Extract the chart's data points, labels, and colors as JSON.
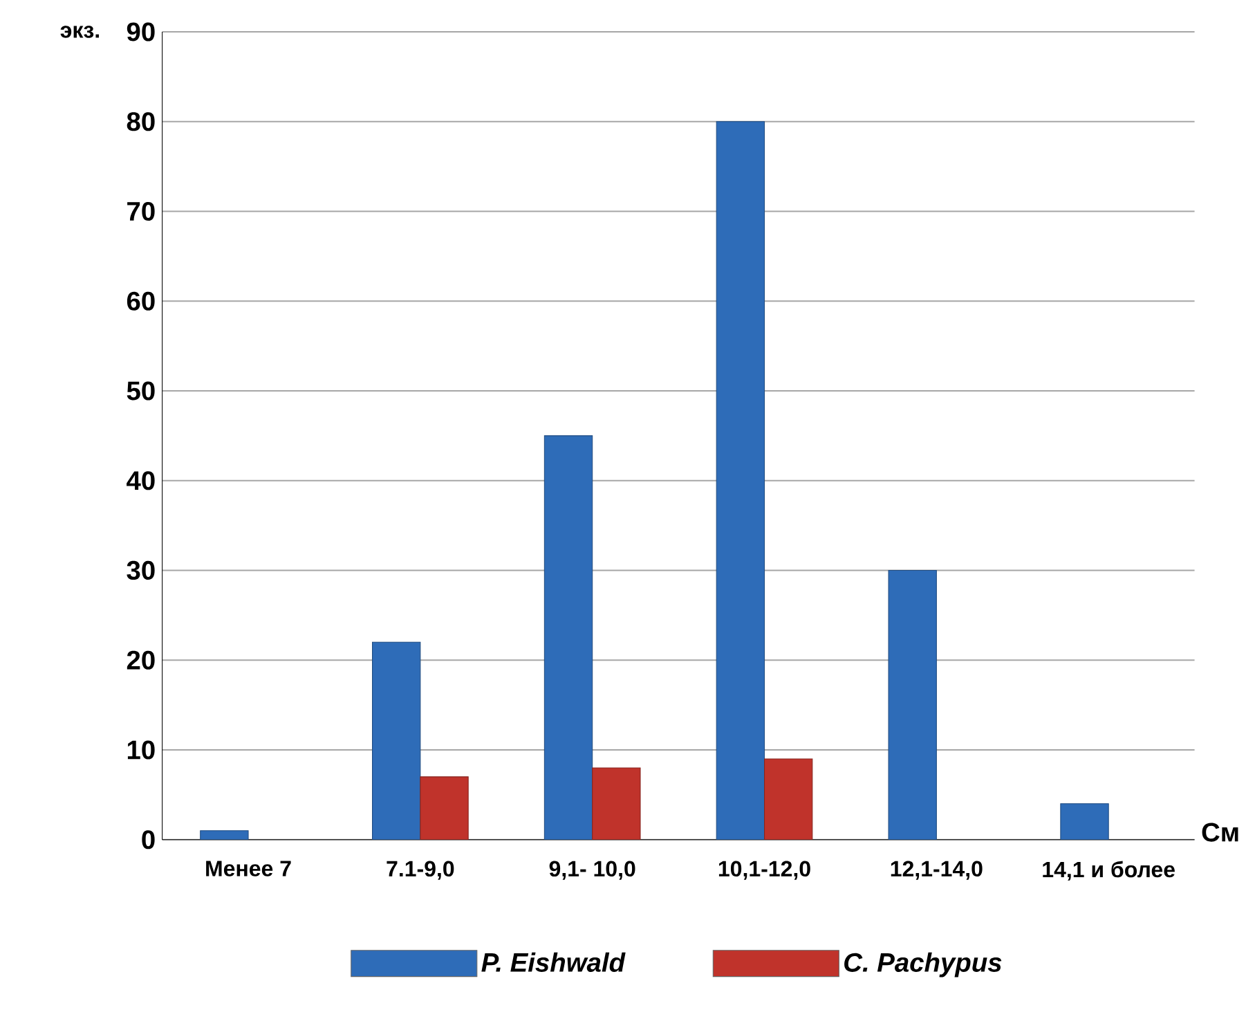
{
  "chart_data": {
    "type": "bar",
    "ylabel": "экз.",
    "xlabel": "См",
    "categories": [
      "Менее 7",
      "7.1-9,0",
      "9,1- 10,0",
      "10,1-12,0",
      "12,1-14,0",
      "14,1 и более"
    ],
    "series": [
      {
        "name": "P. Eishwald",
        "color": "#2e6cb8",
        "values": [
          1,
          22,
          45,
          80,
          30,
          4
        ]
      },
      {
        "name": "C. Pachypus",
        "color": "#c0332b",
        "values": [
          null,
          7,
          8,
          9,
          null,
          null
        ]
      }
    ],
    "ylim": [
      0,
      90
    ],
    "yticks": [
      0,
      10,
      20,
      30,
      40,
      50,
      60,
      70,
      80,
      90
    ],
    "grid": "y",
    "legend": "bottom"
  }
}
